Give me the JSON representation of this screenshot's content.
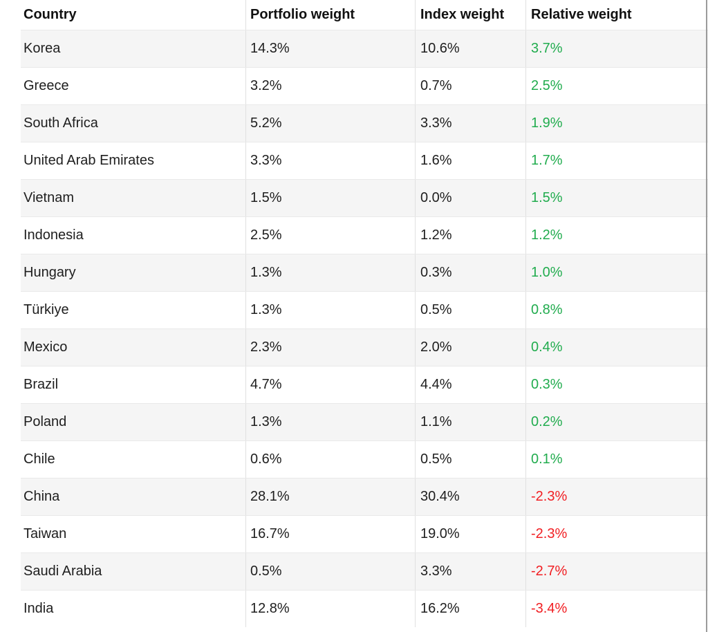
{
  "colors": {
    "positive": "#21ac4e",
    "negative": "#f11e22",
    "stripe": "#f5f5f5",
    "text": "#1e1e1e",
    "border": "#e9e9e9"
  },
  "table": {
    "columns": [
      "Country",
      "Portfolio weight",
      "Index weight",
      "Relative weight"
    ],
    "rows": [
      {
        "country": "Korea",
        "portfolio": "14.3%",
        "index": "10.6%",
        "relative": "3.7%"
      },
      {
        "country": "Greece",
        "portfolio": "3.2%",
        "index": "0.7%",
        "relative": "2.5%"
      },
      {
        "country": "South Africa",
        "portfolio": "5.2%",
        "index": "3.3%",
        "relative": "1.9%"
      },
      {
        "country": "United Arab Emirates",
        "portfolio": "3.3%",
        "index": "1.6%",
        "relative": "1.7%"
      },
      {
        "country": "Vietnam",
        "portfolio": "1.5%",
        "index": "0.0%",
        "relative": "1.5%"
      },
      {
        "country": "Indonesia",
        "portfolio": "2.5%",
        "index": "1.2%",
        "relative": "1.2%"
      },
      {
        "country": "Hungary",
        "portfolio": "1.3%",
        "index": "0.3%",
        "relative": "1.0%"
      },
      {
        "country": "Türkiye",
        "portfolio": "1.3%",
        "index": "0.5%",
        "relative": "0.8%"
      },
      {
        "country": "Mexico",
        "portfolio": "2.3%",
        "index": "2.0%",
        "relative": "0.4%"
      },
      {
        "country": "Brazil",
        "portfolio": "4.7%",
        "index": "4.4%",
        "relative": "0.3%"
      },
      {
        "country": "Poland",
        "portfolio": "1.3%",
        "index": "1.1%",
        "relative": "0.2%"
      },
      {
        "country": "Chile",
        "portfolio": "0.6%",
        "index": "0.5%",
        "relative": "0.1%"
      },
      {
        "country": "China",
        "portfolio": "28.1%",
        "index": "30.4%",
        "relative": "-2.3%"
      },
      {
        "country": "Taiwan",
        "portfolio": "16.7%",
        "index": "19.0%",
        "relative": "-2.3%"
      },
      {
        "country": "Saudi Arabia",
        "portfolio": "0.5%",
        "index": "3.3%",
        "relative": "-2.7%"
      },
      {
        "country": "India",
        "portfolio": "12.8%",
        "index": "16.2%",
        "relative": "-3.4%"
      }
    ]
  },
  "chart_data": {
    "type": "table",
    "title": "",
    "columns": [
      "Country",
      "Portfolio weight",
      "Index weight",
      "Relative weight"
    ],
    "units": "%",
    "rows": [
      [
        "Korea",
        14.3,
        10.6,
        3.7
      ],
      [
        "Greece",
        3.2,
        0.7,
        2.5
      ],
      [
        "South Africa",
        5.2,
        3.3,
        1.9
      ],
      [
        "United Arab Emirates",
        3.3,
        1.6,
        1.7
      ],
      [
        "Vietnam",
        1.5,
        0.0,
        1.5
      ],
      [
        "Indonesia",
        2.5,
        1.2,
        1.2
      ],
      [
        "Hungary",
        1.3,
        0.3,
        1.0
      ],
      [
        "Türkiye",
        1.3,
        0.5,
        0.8
      ],
      [
        "Mexico",
        2.3,
        2.0,
        0.4
      ],
      [
        "Brazil",
        4.7,
        4.4,
        0.3
      ],
      [
        "Poland",
        1.3,
        1.1,
        0.2
      ],
      [
        "Chile",
        0.6,
        0.5,
        0.1
      ],
      [
        "China",
        28.1,
        30.4,
        -2.3
      ],
      [
        "Taiwan",
        16.7,
        19.0,
        -2.3
      ],
      [
        "Saudi Arabia",
        0.5,
        3.3,
        -2.7
      ],
      [
        "India",
        12.8,
        16.2,
        -3.4
      ]
    ],
    "layout": {
      "striped_rows": true,
      "relative_weight_color_coding": "green positive, red negative",
      "sorted_by": "Relative weight descending"
    }
  }
}
